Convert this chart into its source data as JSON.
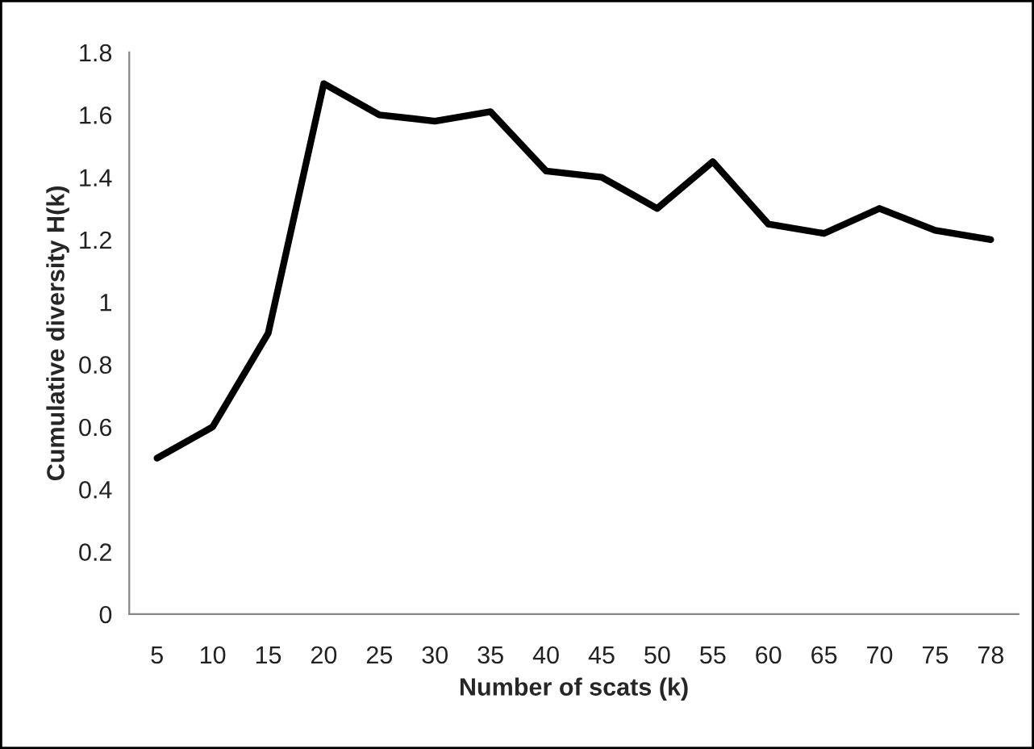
{
  "chart_data": {
    "type": "line",
    "xlabel": "Number of scats (k)",
    "ylabel": "Cumulative diversity H(k)",
    "categories": [
      "5",
      "10",
      "15",
      "20",
      "25",
      "30",
      "35",
      "40",
      "45",
      "50",
      "55",
      "60",
      "65",
      "70",
      "75",
      "78"
    ],
    "series": [
      {
        "color": "#000000",
        "values": [
          0.5,
          0.6,
          0.9,
          1.7,
          1.6,
          1.58,
          1.61,
          1.42,
          1.4,
          1.3,
          1.45,
          1.25,
          1.22,
          1.3,
          1.23,
          1.2
        ]
      }
    ],
    "ylim": [
      0,
      1.8
    ],
    "yticks": [
      0,
      0.2,
      0.4,
      0.6,
      0.8,
      1,
      1.2,
      1.4,
      1.6,
      1.8
    ],
    "grid": false,
    "legend": false,
    "marker": "none",
    "line_style": "solid"
  }
}
